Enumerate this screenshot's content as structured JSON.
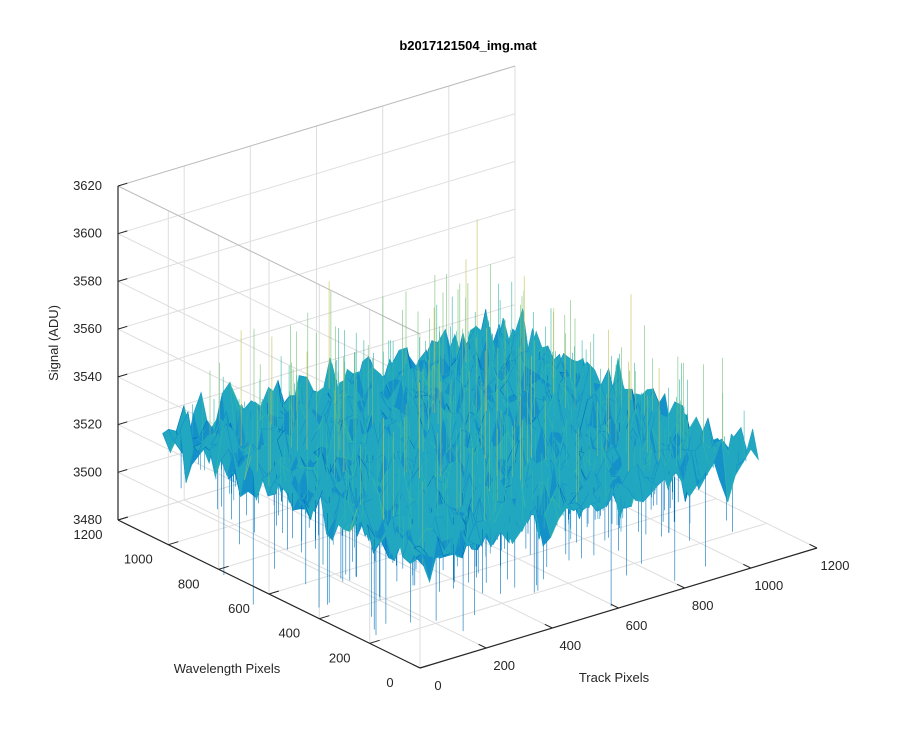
{
  "chart_data": {
    "type": "surface",
    "title": "b2017121504_img.mat",
    "xlabel": "Track Pixels",
    "ylabel": "Wavelength Pixels",
    "zlabel": "Signal (ADU)",
    "xlim": [
      0,
      1200
    ],
    "ylim": [
      0,
      1200
    ],
    "zlim": [
      3480,
      3620
    ],
    "x_ticks": [
      "0",
      "200",
      "400",
      "600",
      "800",
      "1000",
      "1200"
    ],
    "y_ticks": [
      "0",
      "200",
      "400",
      "600",
      "800",
      "1000",
      "1200"
    ],
    "z_ticks": [
      "3480",
      "3500",
      "3520",
      "3540",
      "3560",
      "3580",
      "3600",
      "3620"
    ],
    "grid": true,
    "surface_extent": {
      "x": [
        1,
        1024
      ],
      "y": [
        1,
        1024
      ]
    },
    "mean_signal": 3525,
    "approx_range": [
      3495,
      3575
    ],
    "colormap": [
      "#0072BD",
      "#1591C9",
      "#22A7C0",
      "#33B7A8",
      "#7AC07A",
      "#C4C254"
    ]
  }
}
